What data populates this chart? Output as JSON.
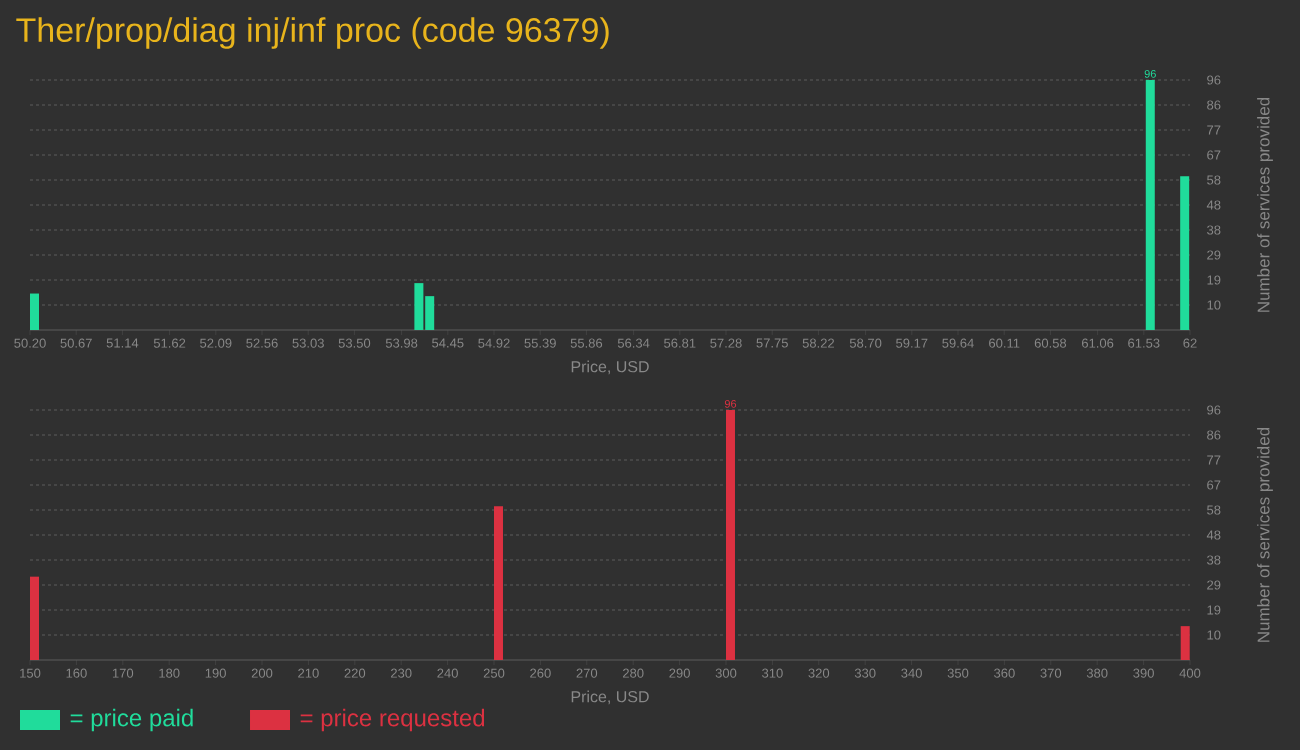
{
  "chart_data": [
    {
      "type": "bar",
      "title": "Ther/prop/diag inj/inf proc (code 96379)",
      "xlabel": "Price, USD",
      "ylabel": "Number of services provided",
      "x": [
        50.2,
        54.11,
        54.22,
        61.55,
        61.9
      ],
      "series": [
        {
          "name": "= price paid",
          "color": "#20dc9b",
          "values": [
            14,
            18,
            13,
            96,
            59
          ],
          "value_labels": [
            null,
            null,
            null,
            "96",
            null
          ]
        }
      ],
      "xlim": [
        50.2,
        62
      ],
      "xticks": [
        {
          "value": 50.2,
          "label": "50.20"
        },
        50.67,
        51.14,
        51.62,
        52.09,
        52.56,
        53.03,
        {
          "value": 53.5,
          "label": "53.50"
        },
        53.98,
        54.45,
        54.92,
        55.39,
        55.86,
        56.34,
        56.81,
        57.28,
        57.75,
        58.22,
        {
          "value": 58.7,
          "label": "58.70"
        },
        59.17,
        59.64,
        60.11,
        60.58,
        61.06,
        61.53,
        62
      ],
      "ylim": [
        0,
        96
      ],
      "yticks": [
        {
          "value": 9.6,
          "label": "10"
        },
        {
          "value": 19.2,
          "label": "19"
        },
        {
          "value": 28.8,
          "label": "29"
        },
        {
          "value": 38.4,
          "label": "38"
        },
        {
          "value": 48,
          "label": "48"
        },
        {
          "value": 57.6,
          "label": "58"
        },
        {
          "value": 67.2,
          "label": "67"
        },
        {
          "value": 76.8,
          "label": "77"
        },
        {
          "value": 86.4,
          "label": "86"
        },
        {
          "value": 96,
          "label": "96"
        }
      ],
      "grid": "y",
      "legend": "bottom"
    },
    {
      "type": "bar",
      "xlabel": "Price, USD",
      "ylabel": "Number of services provided",
      "x": [
        150,
        250,
        300,
        398
      ],
      "series": [
        {
          "name": "= price requested",
          "color": "#dc3141",
          "values": [
            32,
            59,
            96,
            13
          ],
          "value_labels": [
            null,
            null,
            "96",
            null
          ]
        }
      ],
      "xlim": [
        150,
        400
      ],
      "xticks": [
        150,
        160,
        170,
        180,
        190,
        200,
        210,
        220,
        230,
        240,
        250,
        260,
        270,
        280,
        290,
        300,
        310,
        320,
        330,
        340,
        350,
        360,
        370,
        380,
        390,
        400
      ],
      "ylim": [
        0,
        96
      ],
      "yticks": [
        {
          "value": 9.6,
          "label": "10"
        },
        {
          "value": 19.2,
          "label": "19"
        },
        {
          "value": 28.8,
          "label": "29"
        },
        {
          "value": 38.4,
          "label": "38"
        },
        {
          "value": 48,
          "label": "48"
        },
        {
          "value": 57.6,
          "label": "58"
        },
        {
          "value": 67.2,
          "label": "67"
        },
        {
          "value": 76.8,
          "label": "77"
        },
        {
          "value": 86.4,
          "label": "86"
        },
        {
          "value": 96,
          "label": "96"
        }
      ],
      "grid": "y",
      "legend": "bottom"
    }
  ]
}
